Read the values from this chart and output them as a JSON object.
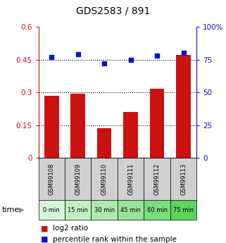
{
  "title": "GDS2583 / 891",
  "categories": [
    "GSM99108",
    "GSM99109",
    "GSM99110",
    "GSM99111",
    "GSM99112",
    "GSM99113"
  ],
  "time_labels": [
    "0 min",
    "15 min",
    "30 min",
    "45 min",
    "60 min",
    "75 min"
  ],
  "time_colors": [
    "#d6f5d6",
    "#c2efc2",
    "#aee9ae",
    "#99e499",
    "#7ddc7d",
    "#5cd45c"
  ],
  "log2_values": [
    0.285,
    0.295,
    0.135,
    0.21,
    0.315,
    0.47
  ],
  "percentile_values": [
    77,
    79,
    72,
    75,
    78,
    80
  ],
  "bar_color": "#cc1111",
  "dot_color": "#1111cc",
  "left_ylim": [
    0,
    0.6
  ],
  "right_ylim": [
    0,
    100
  ],
  "left_yticks": [
    0,
    0.15,
    0.3,
    0.45,
    0.6
  ],
  "right_yticks": [
    0,
    25,
    50,
    75,
    100
  ],
  "left_yticklabels": [
    "0",
    "0.15",
    "0.3",
    "0.45",
    "0.6"
  ],
  "right_yticklabels": [
    "0",
    "25",
    "50",
    "75",
    "100%"
  ],
  "dotted_lines": [
    0.15,
    0.3,
    0.45
  ],
  "bg_xtick_gray": "#d0d0d0",
  "legend_label1": "log2 ratio",
  "legend_label2": "percentile rank within the sample"
}
